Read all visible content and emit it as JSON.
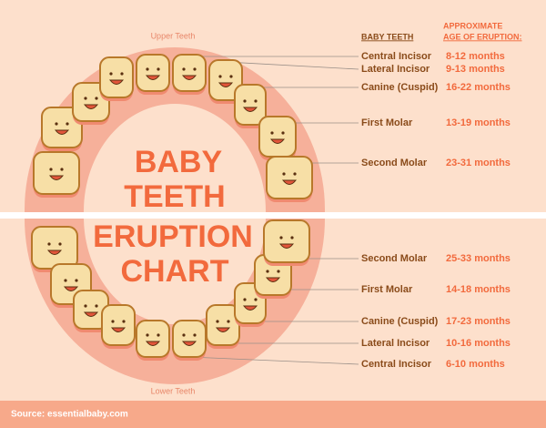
{
  "title_lines": [
    "BABY",
    "TEETH",
    "ERUPTION",
    "CHART"
  ],
  "upper_label": "Upper Teeth",
  "lower_label": "Lower Teeth",
  "headers": {
    "tooth": "BABY TEETH",
    "age": [
      "APPROXIMATE",
      "AGE OF ERUPTION:"
    ]
  },
  "upper": [
    [
      "Central Incisor",
      "8-12 months"
    ],
    [
      "Lateral Incisor",
      "9-13 months"
    ],
    [
      "Canine (Cuspid)",
      "16-22 months"
    ],
    [
      "First Molar",
      "13-19 months"
    ],
    [
      "Second Molar",
      "23-31 months"
    ]
  ],
  "lower": [
    [
      "Second Molar",
      "25-33 months"
    ],
    [
      "First Molar",
      "14-18 months"
    ],
    [
      "Canine (Cuspid)",
      "17-23 months"
    ],
    [
      "Lateral Incisor",
      "10-16 months"
    ],
    [
      "Central Incisor",
      "6-10 months"
    ]
  ],
  "source": "Source: essentialbaby.com"
}
